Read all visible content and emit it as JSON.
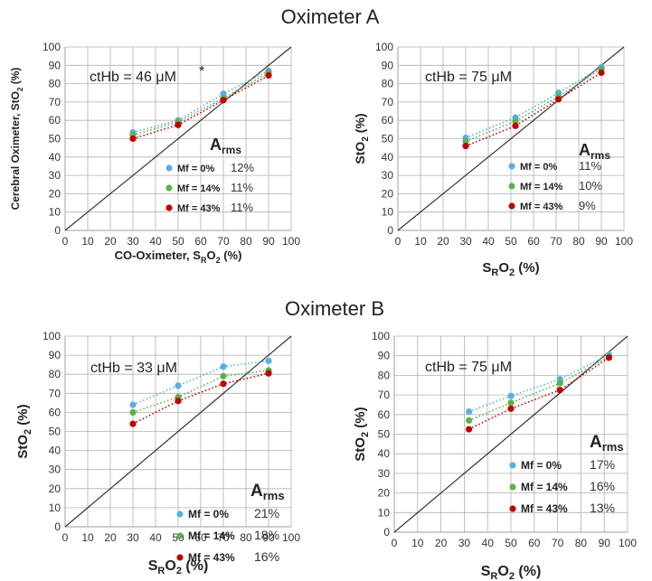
{
  "sections": [
    {
      "title": "Oximeter A"
    },
    {
      "title": "Oximeter B"
    }
  ],
  "colors": {
    "mf0": "#5aaee3",
    "mf14": "#5fb04c",
    "mf43": "#c00000",
    "axis": "#b0b0b0",
    "identity": "#333333"
  },
  "chart_data": [
    {
      "type": "scatter",
      "section": "Oximeter A",
      "annotation": "ctHb = 46 μM",
      "significance": "*",
      "xlabel": {
        "main": "CO-Oximeter, S",
        "sub": "R",
        "post": "O",
        "sub2": "2",
        "end": " (%)"
      },
      "ylabel": {
        "main": "Cerebral Oximeter, StO",
        "sub": "2",
        "end": " (%)"
      },
      "xlim": [
        0,
        100
      ],
      "ylim": [
        0,
        100
      ],
      "ticks": [
        0,
        10,
        20,
        30,
        40,
        50,
        60,
        70,
        80,
        90,
        100
      ],
      "grid": true,
      "identity_line": true,
      "rms_title": {
        "main": "A",
        "sub": "rms"
      },
      "series": [
        {
          "name": "Mf = 0%",
          "rms": "12%",
          "color": "#5aaee3",
          "x": [
            30,
            50,
            70,
            90
          ],
          "y": [
            53.5,
            60,
            74.5,
            87
          ]
        },
        {
          "name": "Mf = 14%",
          "rms": "11%",
          "color": "#5fb04c",
          "x": [
            30,
            50,
            70,
            90
          ],
          "y": [
            52,
            59,
            72,
            86
          ]
        },
        {
          "name": "Mf = 43%",
          "rms": "11%",
          "color": "#c00000",
          "x": [
            30,
            50,
            70,
            90
          ],
          "y": [
            50,
            57.5,
            71,
            84.5
          ]
        }
      ]
    },
    {
      "type": "scatter",
      "section": "Oximeter A",
      "annotation": "ctHb = 75 μM",
      "xlabel": {
        "main": "S",
        "sub": "R",
        "post": "O",
        "sub2": "2",
        "end": " (%)"
      },
      "ylabel": {
        "main": "StO",
        "sub": "2",
        "end": " (%)"
      },
      "xlim": [
        0,
        100
      ],
      "ylim": [
        0,
        100
      ],
      "ticks": [
        0,
        10,
        20,
        30,
        40,
        50,
        60,
        70,
        80,
        90,
        100
      ],
      "grid": true,
      "identity_line": true,
      "rms_title": {
        "main": "A",
        "sub": "rms"
      },
      "series": [
        {
          "name": "Mf = 0%",
          "rms": "11%",
          "color": "#5aaee3",
          "x": [
            30,
            52,
            71,
            90
          ],
          "y": [
            50.5,
            61.5,
            75,
            89
          ]
        },
        {
          "name": "Mf = 14%",
          "rms": "10%",
          "color": "#5fb04c",
          "x": [
            30,
            52,
            71,
            90
          ],
          "y": [
            48.5,
            59.5,
            73,
            88
          ]
        },
        {
          "name": "Mf = 43%",
          "rms": "9%",
          "color": "#c00000",
          "x": [
            30,
            52,
            71,
            90
          ],
          "y": [
            46,
            57,
            71.5,
            86
          ]
        }
      ]
    },
    {
      "type": "scatter",
      "section": "Oximeter B",
      "annotation": "ctHb = 33 μM",
      "xlabel": {
        "main": "S",
        "sub": "R",
        "post": "O",
        "sub2": "2",
        "end": " (%)"
      },
      "ylabel": {
        "main": "StO",
        "sub": "2",
        "end": " (%)"
      },
      "xlim": [
        0,
        100
      ],
      "ylim": [
        0,
        100
      ],
      "ticks": [
        0,
        10,
        20,
        30,
        40,
        50,
        60,
        70,
        80,
        90,
        100
      ],
      "grid": true,
      "identity_line": true,
      "rms_title": {
        "main": "A",
        "sub": "rms"
      },
      "series": [
        {
          "name": "Mf = 0%",
          "rms": "21%",
          "color": "#5aaee3",
          "x": [
            30,
            50,
            70,
            90
          ],
          "y": [
            64,
            74,
            84,
            87
          ]
        },
        {
          "name": "Mf = 14%",
          "rms": "18%",
          "color": "#5fb04c",
          "x": [
            30,
            50,
            70,
            90
          ],
          "y": [
            60,
            68,
            79,
            82
          ]
        },
        {
          "name": "Mf = 43%",
          "rms": "16%",
          "color": "#c00000",
          "x": [
            30,
            50,
            70,
            90
          ],
          "y": [
            54,
            66,
            75,
            80.5
          ]
        }
      ]
    },
    {
      "type": "scatter",
      "section": "Oximeter B",
      "annotation": "ctHb = 75 μM",
      "xlabel": {
        "main": "S",
        "sub": "R",
        "post": "O",
        "sub2": "2",
        "end": " (%)"
      },
      "ylabel": {
        "main": "StO",
        "sub": "2",
        "end": " (%)"
      },
      "xlim": [
        0,
        100
      ],
      "ylim": [
        0,
        100
      ],
      "ticks": [
        0,
        10,
        20,
        30,
        40,
        50,
        60,
        70,
        80,
        90,
        100
      ],
      "grid": true,
      "identity_line": true,
      "rms_title": {
        "main": "A",
        "sub": "rms"
      },
      "series": [
        {
          "name": "Mf = 0%",
          "rms": "17%",
          "color": "#5aaee3",
          "x": [
            32,
            50,
            71,
            92
          ],
          "y": [
            61.5,
            69.5,
            78,
            90.5
          ]
        },
        {
          "name": "Mf = 14%",
          "rms": "16%",
          "color": "#5fb04c",
          "x": [
            32,
            50,
            71,
            92
          ],
          "y": [
            57,
            66,
            76,
            89.5
          ]
        },
        {
          "name": "Mf = 43%",
          "rms": "13%",
          "color": "#c00000",
          "x": [
            32,
            50,
            71,
            92
          ],
          "y": [
            52.5,
            63,
            72.5,
            89
          ]
        }
      ]
    }
  ]
}
